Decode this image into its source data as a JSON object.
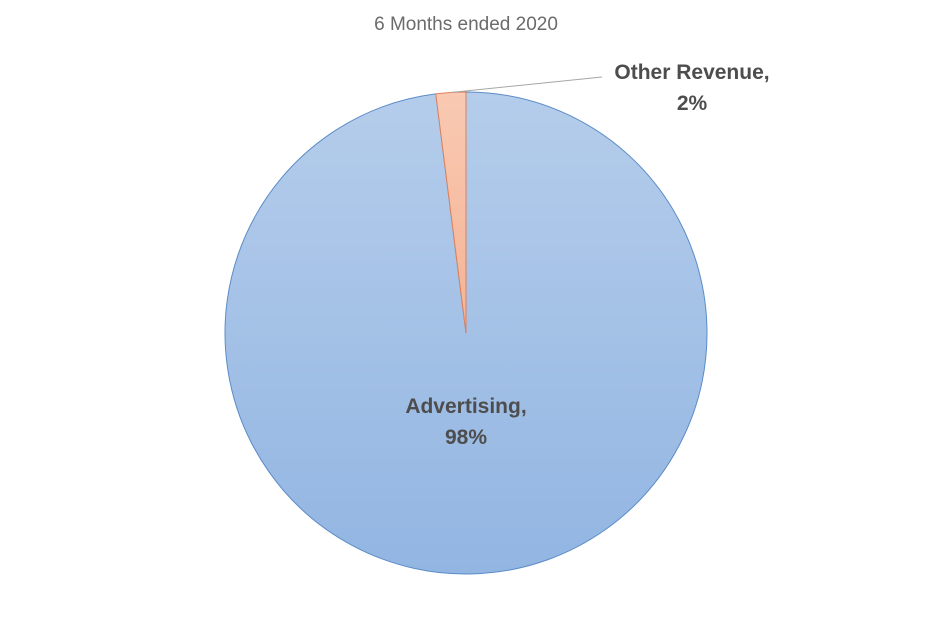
{
  "chart_data": {
    "type": "pie",
    "title": "6 Months ended 2020",
    "slices": [
      {
        "label": "Advertising",
        "value": 98,
        "value_label": "98%",
        "color": "#a4c2e6"
      },
      {
        "label": "Other Revenue",
        "value": 2,
        "value_label": "2%",
        "color": "#f6bea3"
      }
    ]
  }
}
